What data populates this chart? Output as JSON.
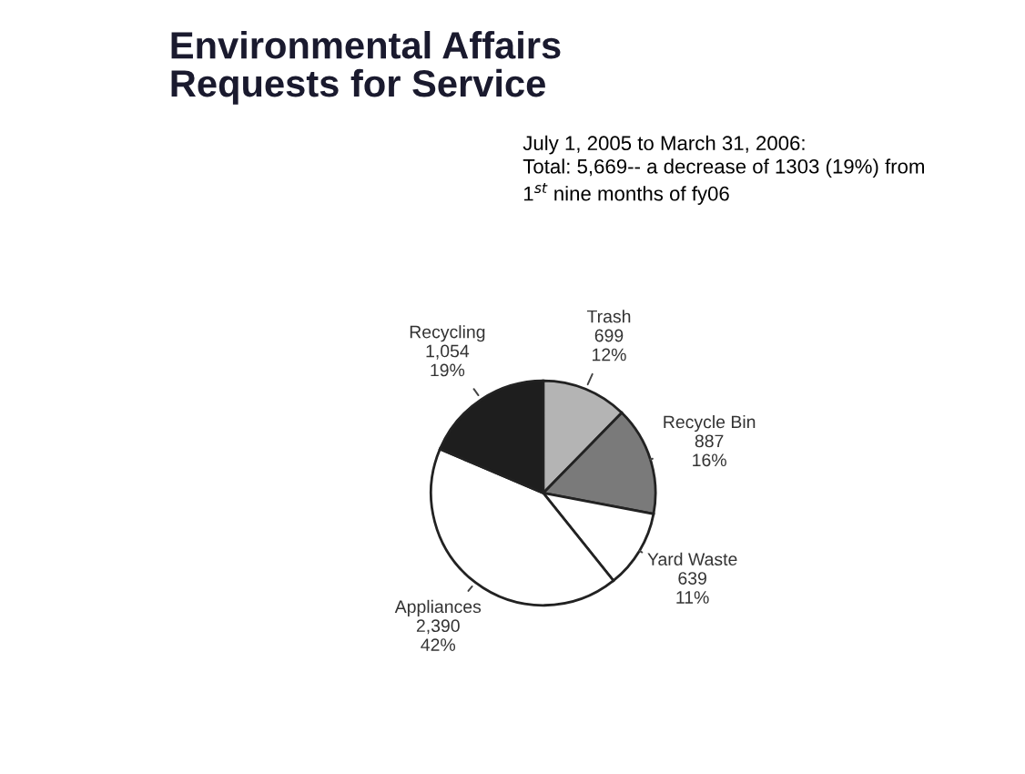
{
  "chart_data": {
    "type": "pie",
    "title": "Environmental Affairs\nRequests for Service",
    "subtitle": "July 1, 2005 to March 31, 2006:\nTotal: 5,669-- a decrease of 1303 (19%) from\n1$^{st}$ nine months of fy06",
    "categories": [
      "Trash",
      "Recycle Bin",
      "Yard Waste",
      "Appliances",
      "Recycling"
    ],
    "values": [
      699,
      887,
      639,
      2390,
      1054
    ],
    "value_labels": [
      "699\n12%",
      "887\n16%",
      "639\n11%",
      "2,390\n42%",
      "1,054\n19%"
    ],
    "colors": [
      "#b4b4b4",
      "#7a7a7a",
      "#ffffff",
      "#ffffff",
      "#1e1e1e"
    ]
  }
}
